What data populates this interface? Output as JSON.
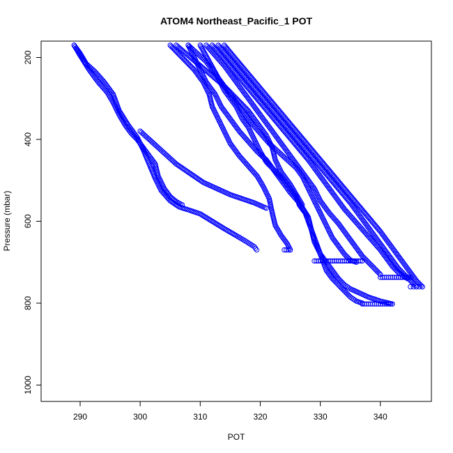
{
  "chart_data": {
    "type": "scatter",
    "title": "ATOM4 Northeast_Pacific_1 POT",
    "xlabel": "POT",
    "ylabel": "Pressure (mbar)",
    "xlim": [
      283.5,
      348.5
    ],
    "ylim": [
      1040,
      160
    ],
    "y_reversed": true,
    "xticks": [
      290,
      300,
      310,
      320,
      330,
      340
    ],
    "yticks": [
      200,
      400,
      600,
      800,
      1000
    ],
    "grid": false,
    "legend": "none",
    "marker": "open-circle",
    "marker_color": "#0000ff",
    "series": [
      {
        "x": [
          289.0,
          290.0,
          291.0,
          292.5,
          294.0,
          295.5,
          296.5,
          298.0,
          299.5,
          300.5,
          301.5,
          302.5,
          303.5,
          305.0,
          306.5,
          308.0,
          310.0,
          312.0,
          314.0,
          316.0,
          317.5,
          319.0,
          319.4
        ],
        "y": [
          170,
          190,
          215,
          235,
          260,
          290,
          330,
          365,
          395,
          425,
          460,
          495,
          525,
          550,
          565,
          572,
          582,
          600,
          618,
          635,
          648,
          662,
          670
        ]
      },
      {
        "x": [
          289.0,
          290.0,
          291.5,
          293.0,
          294.5,
          295.5,
          296.5,
          297.5,
          298.5,
          299.5,
          300.5,
          301.5,
          302.5,
          303.0,
          304.0,
          305.0,
          306.0,
          307.0
        ],
        "y": [
          170,
          195,
          230,
          260,
          285,
          310,
          340,
          365,
          385,
          400,
          420,
          440,
          460,
          490,
          520,
          540,
          552,
          560
        ]
      },
      {
        "x": [
          305.0,
          307.0,
          309.0,
          310.5,
          311.5,
          312.0,
          313.0,
          314.0,
          315.0,
          316.5,
          318.0,
          319.5,
          320.5,
          321.5,
          322.0,
          322.5,
          323.5,
          324.5,
          325.0
        ],
        "y": [
          170,
          200,
          230,
          260,
          290,
          320,
          350,
          380,
          410,
          440,
          465,
          490,
          515,
          545,
          580,
          610,
          635,
          655,
          670
        ]
      },
      {
        "x": [
          300.0,
          301.5,
          303.0,
          304.5,
          306.0,
          307.5,
          309.0,
          310.5,
          312.0,
          313.5,
          315.0,
          317.0,
          319.0,
          321.0
        ],
        "y": [
          380,
          400,
          420,
          440,
          460,
          475,
          490,
          505,
          515,
          525,
          535,
          545,
          555,
          568
        ]
      },
      {
        "x": [
          306.0,
          308.0,
          310.0,
          312.0,
          314.0,
          316.0,
          318.0,
          319.5,
          321.0,
          322.0,
          322.5,
          323.5,
          325.0,
          326.0,
          327.0
        ],
        "y": [
          170,
          195,
          220,
          245,
          270,
          300,
          330,
          360,
          390,
          420,
          450,
          480,
          510,
          535,
          560
        ]
      },
      {
        "x": [
          308.0,
          309.0,
          310.0,
          311.0,
          312.5,
          313.5,
          315.0,
          316.5,
          318.0,
          319.5,
          321.0,
          322.0,
          323.0,
          324.0,
          325.0,
          326.5,
          328.0,
          328.5,
          329.0,
          330.0,
          331.0,
          332.0,
          333.0,
          334.0,
          335.0,
          336.5,
          338.0,
          340.0,
          342.0
        ],
        "y": [
          170,
          200,
          230,
          260,
          290,
          320,
          350,
          380,
          405,
          430,
          450,
          470,
          490,
          510,
          530,
          555,
          590,
          620,
          650,
          680,
          700,
          720,
          740,
          755,
          765,
          775,
          785,
          795,
          802
        ]
      },
      {
        "x": [
          310.0,
          311.5,
          313.0,
          314.0,
          315.0,
          316.0,
          317.0,
          318.0,
          319.0,
          320.0,
          321.0,
          322.0,
          323.0,
          324.0,
          325.0,
          326.0,
          326.5,
          327.5,
          328.0,
          328.5,
          329.0,
          329.5,
          330.0,
          330.5,
          331.0,
          332.0,
          333.0,
          334.0,
          335.0,
          336.0,
          337.0
        ],
        "y": [
          170,
          210,
          250,
          280,
          300,
          320,
          350,
          370,
          400,
          430,
          455,
          470,
          485,
          500,
          520,
          540,
          560,
          580,
          600,
          620,
          640,
          660,
          680,
          700,
          720,
          740,
          755,
          770,
          785,
          795,
          800
        ]
      },
      {
        "x": [
          308.0,
          309.5,
          311.0,
          312.5,
          314.0,
          315.5,
          317.0,
          318.5,
          320.0,
          321.5,
          323.0,
          324.5,
          326.0,
          327.0,
          328.0,
          329.0,
          330.0,
          331.0,
          332.0,
          333.0,
          334.0,
          335.0,
          336.0
        ],
        "y": [
          170,
          190,
          210,
          240,
          270,
          300,
          330,
          360,
          385,
          410,
          430,
          450,
          470,
          490,
          520,
          550,
          580,
          610,
          640,
          660,
          680,
          695,
          700
        ]
      },
      {
        "x": [
          311.0,
          312.5,
          314.0,
          315.5,
          317.0,
          318.5,
          320.0,
          321.5,
          323.0,
          324.5,
          326.0,
          327.5,
          329.0,
          330.0,
          331.5,
          333.0,
          334.0,
          335.0,
          336.0,
          337.0,
          338.0,
          339.0,
          340.0
        ],
        "y": [
          170,
          195,
          220,
          250,
          280,
          310,
          340,
          370,
          400,
          430,
          460,
          490,
          520,
          550,
          580,
          605,
          625,
          645,
          665,
          685,
          700,
          715,
          730
        ]
      },
      {
        "x": [
          312.0,
          314.0,
          316.0,
          318.0,
          320.0,
          322.0,
          324.0,
          326.0,
          328.0,
          329.5,
          331.0,
          332.5,
          334.0,
          335.5,
          337.0,
          338.5,
          340.0,
          341.0,
          342.0,
          343.0,
          344.0,
          344.5
        ],
        "y": [
          170,
          205,
          240,
          275,
          310,
          345,
          380,
          415,
          450,
          480,
          510,
          540,
          570,
          595,
          620,
          645,
          670,
          690,
          710,
          725,
          735,
          740
        ]
      },
      {
        "x": [
          313.0,
          315.0,
          317.0,
          319.0,
          321.0,
          323.0,
          325.0,
          327.0,
          329.0,
          331.0,
          333.0,
          335.0,
          336.5,
          338.0,
          339.5,
          341.0,
          342.0,
          343.0,
          344.0,
          345.0,
          346.0
        ],
        "y": [
          170,
          205,
          240,
          275,
          310,
          345,
          380,
          415,
          450,
          485,
          520,
          555,
          585,
          615,
          645,
          675,
          695,
          715,
          730,
          745,
          760
        ]
      },
      {
        "x": [
          314.0,
          316.0,
          318.0,
          320.0,
          322.0,
          324.0,
          326.0,
          328.0,
          330.0,
          332.0,
          334.0,
          336.0,
          338.0,
          340.0,
          341.5,
          343.0,
          344.0,
          345.0,
          346.0,
          347.0
        ],
        "y": [
          170,
          205,
          240,
          275,
          310,
          345,
          380,
          415,
          450,
          485,
          520,
          555,
          590,
          625,
          655,
          685,
          705,
          725,
          745,
          760
        ]
      },
      {
        "x": [
          324.0,
          325.0
        ],
        "y": [
          670,
          670
        ]
      },
      {
        "x": [
          329.0,
          330.0,
          331.0,
          332.0,
          333.0,
          334.0,
          335.0,
          336.0,
          337.0
        ],
        "y": [
          697,
          697,
          697,
          697,
          697,
          697,
          697,
          697,
          697
        ]
      },
      {
        "x": [
          337.0,
          338.0,
          339.0,
          340.0,
          341.0,
          342.0
        ],
        "y": [
          802,
          802,
          802,
          802,
          802,
          802
        ]
      },
      {
        "x": [
          340.0,
          341.0,
          342.0,
          343.0,
          344.0,
          345.0
        ],
        "y": [
          737,
          737,
          737,
          737,
          737,
          737
        ]
      },
      {
        "x": [
          345.0,
          345.5,
          346.0,
          346.5,
          347.0
        ],
        "y": [
          760,
          760,
          760,
          760,
          760
        ]
      }
    ]
  }
}
